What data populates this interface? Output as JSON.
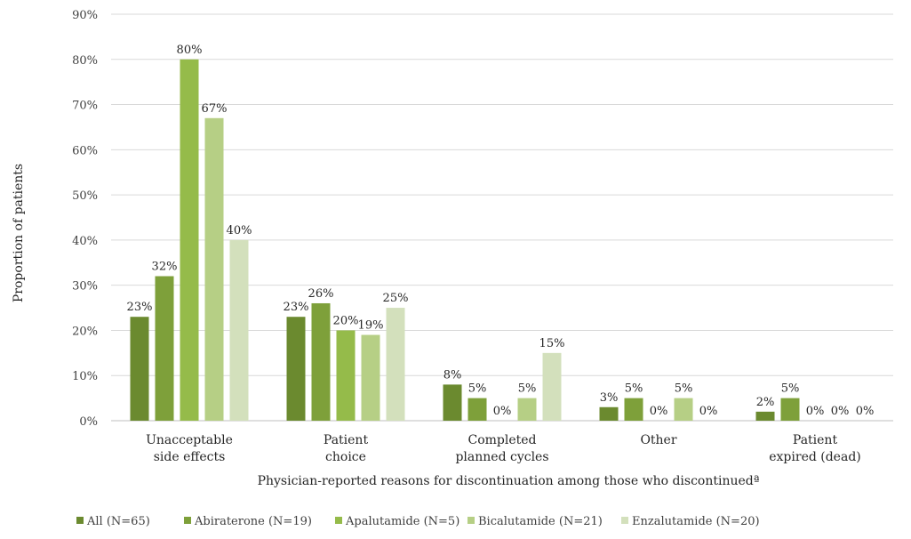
{
  "chart_data": {
    "type": "bar",
    "title": "",
    "xlabel": "Physician-reported reasons for discontinuation among those who discontinuedª",
    "ylabel": "Proportion of patients",
    "ylim": [
      0,
      90
    ],
    "yticks": [
      "0%",
      "10%",
      "20%",
      "30%",
      "40%",
      "50%",
      "60%",
      "70%",
      "80%",
      "90%"
    ],
    "grid": true,
    "legend_position": "bottom",
    "categories": [
      [
        "Unacceptable",
        "side effects"
      ],
      [
        "Patient",
        "choice"
      ],
      [
        "Completed",
        "planned cycles"
      ],
      [
        "Other"
      ],
      [
        "Patient",
        "expired (dead)"
      ]
    ],
    "series": [
      {
        "name": "All (N=65)",
        "color": "#6b8a2f",
        "values": [
          23,
          23,
          8,
          3,
          2
        ],
        "labels": [
          "23%",
          "23%",
          "8%",
          "3%",
          "2%"
        ]
      },
      {
        "name": "Abiraterone (N=19)",
        "color": "#7ea03a",
        "values": [
          32,
          26,
          5,
          5,
          5
        ],
        "labels": [
          "32%",
          "26%",
          "5%",
          "5%",
          "5%"
        ]
      },
      {
        "name": "Apalutamide (N=5)",
        "color": "#95bb4a",
        "values": [
          80,
          20,
          0,
          0,
          0
        ],
        "labels": [
          "80%",
          "20%",
          "0%",
          "0%",
          "0%"
        ]
      },
      {
        "name": "Bicalutamide (N=21)",
        "color": "#b6cf85",
        "values": [
          67,
          19,
          5,
          5,
          0
        ],
        "labels": [
          "67%",
          "19%",
          "5%",
          "5%",
          "0%"
        ]
      },
      {
        "name": "Enzalutamide (N=20)",
        "color": "#d3e0bc",
        "values": [
          40,
          25,
          15,
          0,
          0
        ],
        "labels": [
          "40%",
          "25%",
          "15%",
          "0%",
          "0%"
        ]
      }
    ]
  }
}
